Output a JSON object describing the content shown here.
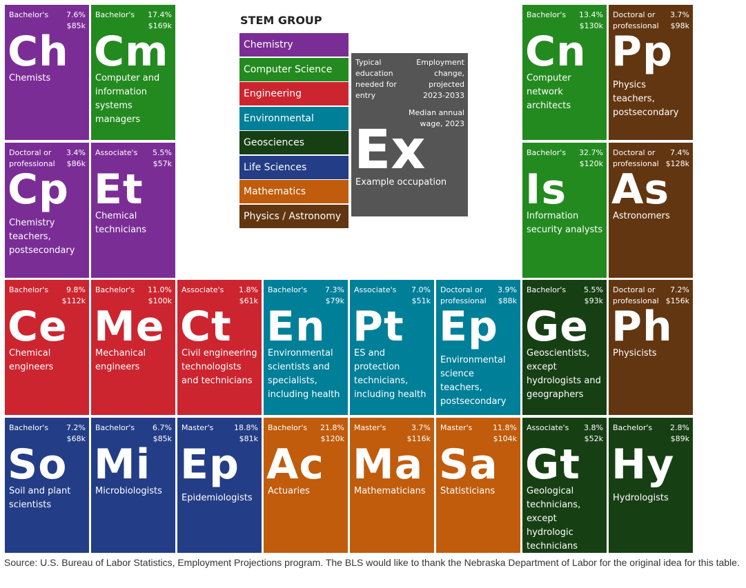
{
  "legend": {
    "title": "STEM GROUP",
    "items": [
      {
        "label": "Chemistry",
        "color": "#7b2d96"
      },
      {
        "label": "Computer Science",
        "color": "#238a1f"
      },
      {
        "label": "Engineering",
        "color": "#cc2530"
      },
      {
        "label": "Environmental Science",
        "color": "#007f99"
      },
      {
        "label": "Geosciences",
        "color": "#173f14"
      },
      {
        "label": "Life Sciences",
        "color": "#233d86"
      },
      {
        "label": "Mathematics",
        "color": "#c05c0c"
      },
      {
        "label": "Physics / Astronomy",
        "color": "#623611"
      }
    ]
  },
  "example": {
    "education_label": "Typical education needed for entry",
    "change_label": "Employment change, projected 2023-2033",
    "wage_label": "Median annual wage, 2023",
    "symbol": "Ex",
    "occupation": "Example occupation",
    "color": "#555555"
  },
  "tiles": [
    {
      "group": "Chemistry",
      "education": "Bachelor's",
      "change": "7.6%",
      "wage": "$85k",
      "symbol": "Ch",
      "occupation": "Chemists"
    },
    {
      "group": "Computer Science",
      "education": "Bachelor's",
      "change": "17.4%",
      "wage": "$169k",
      "symbol": "Cm",
      "occupation": "Computer and information systems managers"
    },
    {
      "group": "Computer Science",
      "education": "Bachelor's",
      "change": "13.4%",
      "wage": "$130k",
      "symbol": "Cn",
      "occupation": "Computer network architects"
    },
    {
      "group": "Physics / Astronomy",
      "education": "Doctoral or professional",
      "change": "3.7%",
      "wage": "$98k",
      "symbol": "Pp",
      "occupation": "Physics teachers, postsecondary"
    },
    {
      "group": "Chemistry",
      "education": "Doctoral or professional",
      "change": "3.4%",
      "wage": "$86k",
      "symbol": "Cp",
      "occupation": "Chemistry teachers, postsecondary"
    },
    {
      "group": "Chemistry",
      "education": "Associate's",
      "change": "5.5%",
      "wage": "$57k",
      "symbol": "Et",
      "occupation": "Chemical technicians"
    },
    {
      "group": "Computer Science",
      "education": "Bachelor's",
      "change": "32.7%",
      "wage": "$120k",
      "symbol": "Is",
      "occupation": "Information security analysts"
    },
    {
      "group": "Physics / Astronomy",
      "education": "Doctoral or professional",
      "change": "7.4%",
      "wage": "$128k",
      "symbol": "As",
      "occupation": "Astronomers"
    },
    {
      "group": "Engineering",
      "education": "Bachelor's",
      "change": "9.8%",
      "wage": "$112k",
      "symbol": "Ce",
      "occupation": "Chemical engineers"
    },
    {
      "group": "Engineering",
      "education": "Bachelor's",
      "change": "11.0%",
      "wage": "$100k",
      "symbol": "Me",
      "occupation": "Mechanical engineers"
    },
    {
      "group": "Engineering",
      "education": "Associate's",
      "change": "1.8%",
      "wage": "$61k",
      "symbol": "Ct",
      "occupation": "Civil engineering technologists and technicians"
    },
    {
      "group": "Environmental Science",
      "education": "Bachelor's",
      "change": "7.3%",
      "wage": "$79k",
      "symbol": "En",
      "occupation": "Environmental scientists and specialists, including health"
    },
    {
      "group": "Environmental Science",
      "education": "Associate's",
      "change": "7.0%",
      "wage": "$51k",
      "symbol": "Pt",
      "occupation": "ES and protection technicians, including health"
    },
    {
      "group": "Environmental Science",
      "education": "Doctoral or professional",
      "change": "3.9%",
      "wage": "$88k",
      "symbol": "Ep",
      "occupation": "Environmental science teachers, postsecondary"
    },
    {
      "group": "Geosciences",
      "education": "Bachelor's",
      "change": "5.5%",
      "wage": "$93k",
      "symbol": "Ge",
      "occupation": "Geoscientists, except hydrologists and geographers"
    },
    {
      "group": "Physics / Astronomy",
      "education": "Doctoral or professional",
      "change": "7.2%",
      "wage": "$156k",
      "symbol": "Ph",
      "occupation": "Physicists"
    },
    {
      "group": "Life Sciences",
      "education": "Bachelor's",
      "change": "7.2%",
      "wage": "$68k",
      "symbol": "So",
      "occupation": "Soil and plant scientists"
    },
    {
      "group": "Life Sciences",
      "education": "Bachelor's",
      "change": "6.7%",
      "wage": "$85k",
      "symbol": "Mi",
      "occupation": "Microbiologists"
    },
    {
      "group": "Life Sciences",
      "education": "Master's",
      "change": "18.8%",
      "wage": "$81k",
      "symbol": "Ep",
      "occupation": "Epidemiologists"
    },
    {
      "group": "Mathematics",
      "education": "Bachelor's",
      "change": "21.8%",
      "wage": "$120k",
      "symbol": "Ac",
      "occupation": "Actuaries"
    },
    {
      "group": "Mathematics",
      "education": "Master's",
      "change": "3.7%",
      "wage": "$116k",
      "symbol": "Ma",
      "occupation": "Mathematicians"
    },
    {
      "group": "Mathematics",
      "education": "Master's",
      "change": "11.8%",
      "wage": "$104k",
      "symbol": "Sa",
      "occupation": "Statisticians"
    },
    {
      "group": "Geosciences",
      "education": "Associate's",
      "change": "3.8%",
      "wage": "$52k",
      "symbol": "Gt",
      "occupation": "Geological technicians, except hydrologic technicians"
    },
    {
      "group": "Geosciences",
      "education": "Bachelor's",
      "change": "2.8%",
      "wage": "$89k",
      "symbol": "Hy",
      "occupation": "Hydrologists"
    }
  ],
  "source": "Source: U.S. Bureau of Labor Statistics, Employment Projections program. The BLS would like to thank the Nebraska Department of Labor for the original idea for this table."
}
